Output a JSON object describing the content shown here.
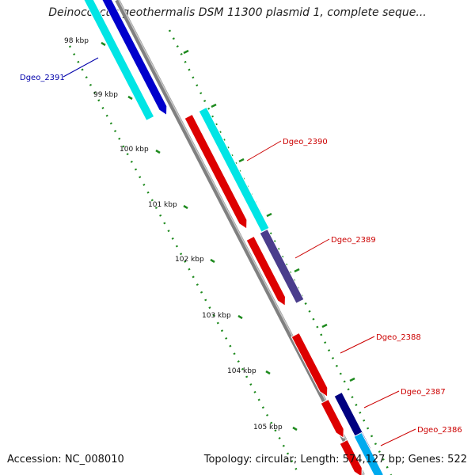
{
  "title": "Deinococcus geothermalis DSM 11300 plasmid 1, complete seque...",
  "footer": {
    "accession": "Accession: NC_008010",
    "summary": "Topology: circular; Length: 574,127 bp; Genes: 522"
  },
  "colors": {
    "backbone": "#888888",
    "tick": "#1e8a1e",
    "forward_label": "#0000aa",
    "reverse_label": "#cc0000"
  },
  "ticks": [
    "98 kbp",
    "99 kbp",
    "100 kbp",
    "101 kbp",
    "102 kbp",
    "103 kbp",
    "104 kbp",
    "105 kbp"
  ],
  "genes": [
    {
      "label": "Dgeo_2391",
      "color": "#0000cc",
      "label_color": "#0000aa",
      "shadow": "#00e5e5"
    },
    {
      "label": "Dgeo_2390",
      "color": "#dd0000",
      "label_color": "#cc0000",
      "shadow": "#00e5e5"
    },
    {
      "label": "Dgeo_2389",
      "color": "#dd0000",
      "label_color": "#cc0000",
      "shadow": "#4a3d8c"
    },
    {
      "label": "Dgeo_2388",
      "color": "#dd0000",
      "label_color": "#cc0000",
      "shadow": ""
    },
    {
      "label": "Dgeo_2387",
      "color": "#dd0000",
      "label_color": "#cc0000",
      "shadow": "#000080"
    },
    {
      "label": "Dgeo_2386",
      "color": "#dd0000",
      "label_color": "#cc0000",
      "shadow": "#00aaee"
    }
  ]
}
